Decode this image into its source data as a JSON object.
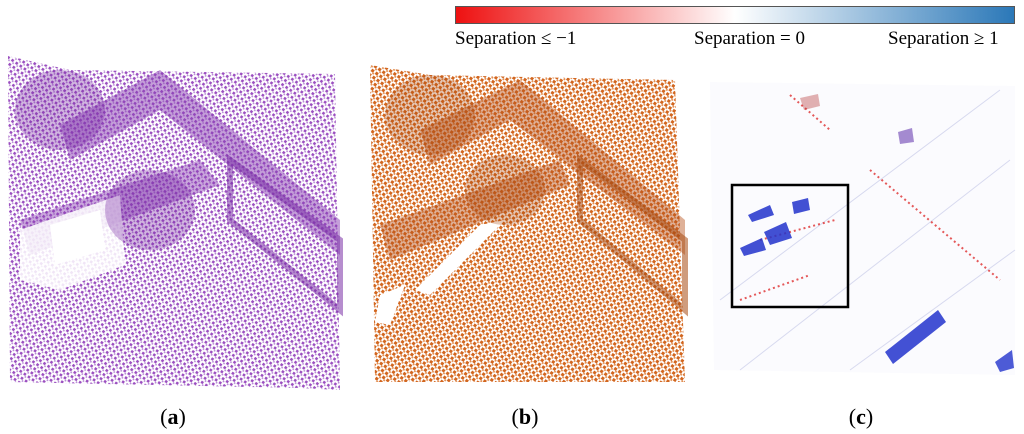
{
  "colorbar": {
    "label_left": "Separation ≤ −1",
    "label_mid": "Separation = 0",
    "label_right": "Separation ≥ 1",
    "color_negative": "#ee1111",
    "color_zero": "#ffffff",
    "color_positive": "#2b78b8"
  },
  "panels": [
    {
      "id": "a",
      "caption_letter": "a",
      "point_color": "#9b4fc0"
    },
    {
      "id": "b",
      "caption_letter": "b",
      "point_color": "#d2661f"
    },
    {
      "id": "c",
      "caption_letter": "c",
      "point_color_neg": "#dd2222",
      "point_color_pos": "#2233cc"
    }
  ]
}
